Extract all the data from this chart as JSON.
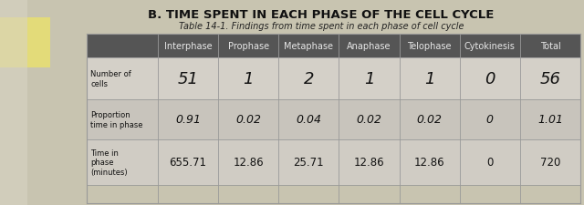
{
  "title": "B. TIME SPENT IN EACH PHASE OF THE CELL CYCLE",
  "subtitle": "Table 14-1. Findings from time spent in each phase of cell cycle",
  "columns": [
    "Interphase",
    "Prophase",
    "Metaphase",
    "Anaphase",
    "Telophase",
    "Cytokinesis",
    "Total"
  ],
  "row_labels": [
    "Number of\ncells",
    "Proportion\ntime in phase",
    "Time in\nphase\n(minutes)"
  ],
  "rows": [
    [
      "51",
      "1",
      "2",
      "1",
      "1",
      "0",
      "56"
    ],
    [
      "0.91",
      "0.02",
      "0.04",
      "0.02",
      "0.02",
      "0",
      "1.01"
    ],
    [
      "655.71",
      "12.86",
      "25.71",
      "12.86",
      "12.86",
      "0",
      "720"
    ]
  ],
  "header_bg": "#555555",
  "header_text_color": "#e8e8e8",
  "row_bg_1": "#d4d0c8",
  "row_bg_2": "#c8c4bc",
  "row_bg_3": "#d0ccc4",
  "label_bg": "#c8c4bc",
  "title_color": "#111111",
  "subtitle_color": "#222222",
  "bg_color_top": "#c8c4b0",
  "bg_color_table": "#b8b4a8",
  "grid_color": "#999999",
  "title_fontsize": 9.5,
  "subtitle_fontsize": 7,
  "header_fontsize": 7,
  "label_fontsize": 6,
  "cell_fontsize_row0": 13,
  "cell_fontsize_row1": 9,
  "cell_fontsize_row2": 8.5
}
